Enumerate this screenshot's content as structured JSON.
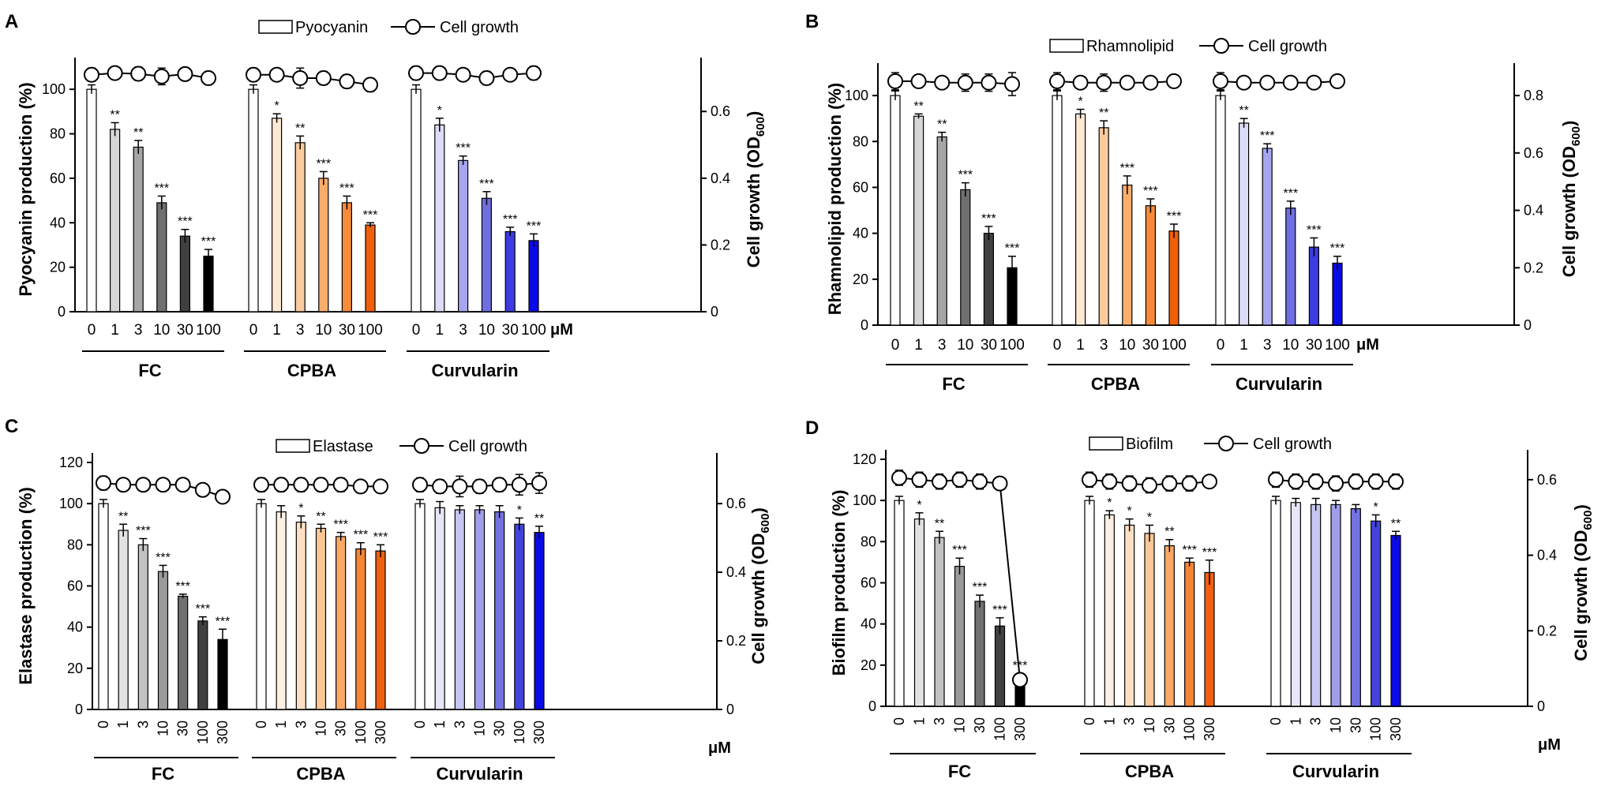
{
  "chart_data": [
    {
      "panel_label": "A",
      "type": "bar",
      "legend": {
        "bar": "Pyocyanin",
        "line": "Cell growth"
      },
      "ylabel": "Pyocyanin production (%)",
      "y2label": "Cell growth (OD",
      "y2label_sub": "600",
      "y2label_end": ")",
      "ylim": [
        0,
        110
      ],
      "yticks": [
        0,
        20,
        40,
        60,
        80,
        100
      ],
      "y2lim": [
        0,
        0.733
      ],
      "y2ticks": [
        0,
        0.2,
        0.4,
        0.6
      ],
      "y2tick_labels": [
        "0",
        "0.2",
        "0.4",
        "0.6"
      ],
      "unit": "μM",
      "rotated_ticks": false,
      "groups": [
        {
          "name": "FC",
          "categories": [
            "0",
            "1",
            "3",
            "10",
            "30",
            "100"
          ],
          "values": [
            100,
            82,
            74,
            49,
            34,
            25
          ],
          "errors": [
            2,
            3,
            3,
            3,
            3,
            3
          ],
          "sig": [
            "",
            "**",
            "**",
            "***",
            "***",
            "***"
          ],
          "growth": [
            0.71,
            0.715,
            0.713,
            0.705,
            0.712,
            0.7
          ],
          "growth_err": [
            0.02,
            0.015,
            0.02,
            0.025,
            0.015,
            0.02
          ],
          "colors": [
            "#ffffff",
            "#d6d6d6",
            "#a6a6a6",
            "#707070",
            "#404040",
            "#000000"
          ]
        },
        {
          "name": "CPBA",
          "categories": [
            "0",
            "1",
            "3",
            "10",
            "30",
            "100"
          ],
          "values": [
            100,
            87,
            76,
            60,
            49,
            39
          ],
          "errors": [
            2,
            2,
            3,
            3,
            3,
            1
          ],
          "sig": [
            "",
            "*",
            "**",
            "***",
            "***",
            "***"
          ],
          "growth": [
            0.71,
            0.71,
            0.7,
            0.7,
            0.69,
            0.68
          ],
          "growth_err": [
            0.02,
            0.015,
            0.03,
            0.02,
            0.02,
            0.02
          ],
          "colors": [
            "#ffffff",
            "#fde8d4",
            "#fbcb9e",
            "#f9ae6c",
            "#f68b3b",
            "#f0600a"
          ]
        },
        {
          "name": "Curvularin",
          "categories": [
            "0",
            "1",
            "3",
            "10",
            "30",
            "100"
          ],
          "values": [
            100,
            84,
            68,
            51,
            36,
            32
          ],
          "errors": [
            2,
            3,
            2,
            3,
            2,
            3
          ],
          "sig": [
            "",
            "*",
            "***",
            "***",
            "***",
            "***"
          ],
          "growth": [
            0.715,
            0.715,
            0.71,
            0.7,
            0.71,
            0.715
          ],
          "growth_err": [
            0.02,
            0.02,
            0.015,
            0.02,
            0.015,
            0.02
          ],
          "colors": [
            "#ffffff",
            "#dcdcf7",
            "#a6a6ee",
            "#6f6fe0",
            "#3c3ce0",
            "#0a0ae6"
          ]
        }
      ]
    },
    {
      "panel_label": "B",
      "type": "bar",
      "legend": {
        "bar": "Rhamnolipid",
        "line": "Cell growth"
      },
      "ylabel": "Rhamnolipid production (%)",
      "y2label": "Cell growth (OD",
      "y2label_sub": "600",
      "y2label_end": ")",
      "ylim": [
        0,
        110
      ],
      "yticks": [
        0,
        20,
        40,
        60,
        80,
        100
      ],
      "y2lim": [
        0,
        0.88
      ],
      "y2ticks": [
        0,
        0.2,
        0.4,
        0.6,
        0.8
      ],
      "y2tick_labels": [
        "0",
        "0.2",
        "0.4",
        "0.6",
        "0.8"
      ],
      "unit": "μM",
      "rotated_ticks": false,
      "groups": [
        {
          "name": "FC",
          "categories": [
            "0",
            "1",
            "3",
            "10",
            "30",
            "100"
          ],
          "values": [
            100,
            91,
            82,
            59,
            40,
            25
          ],
          "errors": [
            2,
            1,
            2,
            3,
            3,
            5
          ],
          "sig": [
            "",
            "**",
            "**",
            "***",
            "***",
            "***"
          ],
          "growth": [
            0.85,
            0.85,
            0.845,
            0.845,
            0.845,
            0.84
          ],
          "growth_err": [
            0.03,
            0.02,
            0.02,
            0.03,
            0.03,
            0.04
          ],
          "colors": [
            "#ffffff",
            "#d6d6d6",
            "#a6a6a6",
            "#707070",
            "#404040",
            "#000000"
          ]
        },
        {
          "name": "CPBA",
          "categories": [
            "0",
            "1",
            "3",
            "10",
            "30",
            "100"
          ],
          "values": [
            100,
            92,
            86,
            61,
            52,
            41
          ],
          "errors": [
            2,
            2,
            3,
            4,
            3,
            3
          ],
          "sig": [
            "",
            "*",
            "**",
            "***",
            "***",
            "***"
          ],
          "growth": [
            0.85,
            0.845,
            0.845,
            0.845,
            0.845,
            0.85
          ],
          "growth_err": [
            0.03,
            0.02,
            0.03,
            0.02,
            0.02,
            0.02
          ],
          "colors": [
            "#ffffff",
            "#fde8d4",
            "#fbcb9e",
            "#f9ae6c",
            "#f68b3b",
            "#f0600a"
          ]
        },
        {
          "name": "Curvularin",
          "categories": [
            "0",
            "1",
            "3",
            "10",
            "30",
            "100"
          ],
          "values": [
            100,
            88,
            77,
            51,
            34,
            27
          ],
          "errors": [
            2,
            2,
            2,
            3,
            4,
            3
          ],
          "sig": [
            "",
            "**",
            "***",
            "***",
            "***",
            "***"
          ],
          "growth": [
            0.85,
            0.845,
            0.845,
            0.845,
            0.845,
            0.85
          ],
          "growth_err": [
            0.03,
            0.02,
            0.02,
            0.02,
            0.02,
            0.02
          ],
          "colors": [
            "#ffffff",
            "#dcdcf7",
            "#a6a6ee",
            "#6f6fe0",
            "#3c3ce0",
            "#0a0ae6"
          ]
        }
      ]
    },
    {
      "panel_label": "C",
      "type": "bar",
      "legend": {
        "bar": "Elastase",
        "line": "Cell growth"
      },
      "ylabel": "Elastase production (%)",
      "y2label": "Cell growth (OD",
      "y2label_sub": "600",
      "y2label_end": ")",
      "ylim": [
        0,
        120
      ],
      "yticks": [
        0,
        20,
        40,
        60,
        80,
        100,
        120
      ],
      "y2lim": [
        0,
        0.72
      ],
      "y2ticks": [
        0,
        0.2,
        0.4,
        0.6
      ],
      "y2tick_labels": [
        "0",
        "0.2",
        "0.4",
        "0.6"
      ],
      "unit": "μM",
      "rotated_ticks": true,
      "groups": [
        {
          "name": "FC",
          "categories": [
            "0",
            "1",
            "3",
            "10",
            "30",
            "100",
            "300"
          ],
          "values": [
            100,
            87,
            80,
            67,
            55,
            43,
            34
          ],
          "errors": [
            2,
            3,
            3,
            3,
            1,
            2,
            5
          ],
          "sig": [
            "",
            "**",
            "***",
            "***",
            "***",
            "***",
            "***"
          ],
          "growth": [
            0.66,
            0.655,
            0.655,
            0.655,
            0.655,
            0.64,
            0.62
          ],
          "growth_err": [
            0.02,
            0.01,
            0.01,
            0.01,
            0.01,
            0.01,
            0.005
          ],
          "colors": [
            "#ffffff",
            "#e2e2e2",
            "#c2c2c2",
            "#9a9a9a",
            "#707070",
            "#404040",
            "#000000"
          ]
        },
        {
          "name": "CPBA",
          "categories": [
            "0",
            "1",
            "3",
            "10",
            "30",
            "100",
            "300"
          ],
          "values": [
            100,
            96,
            91,
            88,
            84,
            78,
            77
          ],
          "errors": [
            2,
            3,
            3,
            2,
            2,
            3,
            3
          ],
          "sig": [
            "",
            "",
            "*",
            "**",
            "***",
            "***",
            "***"
          ],
          "growth": [
            0.655,
            0.655,
            0.655,
            0.655,
            0.655,
            0.65,
            0.65
          ],
          "growth_err": [
            0.02,
            0.02,
            0.02,
            0.02,
            0.02,
            0.015,
            0.015
          ],
          "colors": [
            "#ffffff",
            "#fef0e2",
            "#fde0c4",
            "#fbc796",
            "#f9a965",
            "#f68536",
            "#f06010"
          ]
        },
        {
          "name": "Curvularin",
          "categories": [
            "0",
            "1",
            "3",
            "10",
            "30",
            "100",
            "300"
          ],
          "values": [
            100,
            98,
            97,
            97,
            96,
            90,
            86
          ],
          "errors": [
            2,
            3,
            2,
            2,
            3,
            3,
            3
          ],
          "sig": [
            "",
            "",
            "",
            "",
            "",
            "*",
            "**"
          ],
          "growth": [
            0.655,
            0.65,
            0.65,
            0.65,
            0.655,
            0.655,
            0.66
          ],
          "growth_err": [
            0.02,
            0.02,
            0.03,
            0.02,
            0.02,
            0.03,
            0.03
          ],
          "colors": [
            "#ffffff",
            "#e6e6f9",
            "#c6c6f2",
            "#a0a0ea",
            "#7373e2",
            "#4343dc",
            "#0a0ae6"
          ]
        }
      ]
    },
    {
      "panel_label": "D",
      "type": "bar",
      "legend": {
        "bar": "Biofilm",
        "line": "Cell growth"
      },
      "ylabel": "Biofilm production (%)",
      "y2label": "Cell growth (OD",
      "y2label_sub": "600",
      "y2label_end": ")",
      "ylim": [
        0,
        120
      ],
      "yticks": [
        0,
        20,
        40,
        60,
        80,
        100,
        120
      ],
      "y2lim": [
        0,
        0.654
      ],
      "y2ticks": [
        0,
        0.2,
        0.4,
        0.6
      ],
      "y2tick_labels": [
        "0",
        "0.2",
        "0.4",
        "0.6"
      ],
      "unit": "μM",
      "rotated_ticks": true,
      "groups": [
        {
          "name": "FC",
          "categories": [
            "0",
            "1",
            "3",
            "10",
            "30",
            "100",
            "300"
          ],
          "values": [
            100,
            91,
            82,
            68,
            51,
            39,
            12
          ],
          "errors": [
            2,
            3,
            3,
            4,
            3,
            4,
            4
          ],
          "sig": [
            "",
            "*",
            "**",
            "***",
            "***",
            "***",
            "***"
          ],
          "growth": [
            0.605,
            0.6,
            0.595,
            0.6,
            0.595,
            0.59,
            0.07
          ],
          "growth_err": [
            0.02,
            0.02,
            0.02,
            0.02,
            0.02,
            0.01,
            0.015
          ],
          "colors": [
            "#ffffff",
            "#e2e2e2",
            "#c2c2c2",
            "#9a9a9a",
            "#707070",
            "#404040",
            "#000000"
          ]
        },
        {
          "name": "CPBA",
          "categories": [
            "0",
            "1",
            "3",
            "10",
            "30",
            "100",
            "300"
          ],
          "values": [
            100,
            93,
            88,
            84,
            78,
            70,
            65
          ],
          "errors": [
            2,
            2,
            3,
            4,
            3,
            2,
            6
          ],
          "sig": [
            "",
            "*",
            "*",
            "*",
            "**",
            "***",
            "***"
          ],
          "growth": [
            0.6,
            0.595,
            0.59,
            0.585,
            0.59,
            0.59,
            0.595
          ],
          "growth_err": [
            0.02,
            0.02,
            0.02,
            0.02,
            0.02,
            0.02,
            0.01
          ],
          "colors": [
            "#ffffff",
            "#fef0e2",
            "#fde0c4",
            "#fbc796",
            "#f9a965",
            "#f68536",
            "#f06010"
          ]
        },
        {
          "name": "Curvularin",
          "categories": [
            "0",
            "1",
            "3",
            "10",
            "30",
            "100",
            "300"
          ],
          "values": [
            100,
            99,
            98,
            98,
            96,
            90,
            83
          ],
          "errors": [
            2,
            2,
            3,
            2,
            2,
            3,
            2
          ],
          "sig": [
            "",
            "",
            "",
            "",
            "",
            "*",
            "**"
          ],
          "growth": [
            0.6,
            0.595,
            0.595,
            0.59,
            0.595,
            0.595,
            0.595
          ],
          "growth_err": [
            0.02,
            0.02,
            0.02,
            0.02,
            0.02,
            0.02,
            0.02
          ],
          "colors": [
            "#ffffff",
            "#e6e6f9",
            "#c6c6f2",
            "#a0a0ea",
            "#7373e2",
            "#4343dc",
            "#0a0ae6"
          ]
        }
      ]
    }
  ]
}
